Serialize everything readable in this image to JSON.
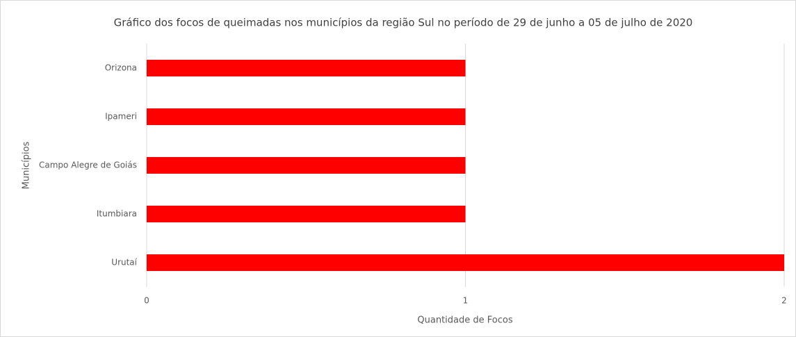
{
  "chart_data": {
    "type": "bar",
    "orientation": "horizontal",
    "title": "Gráfico dos focos de queimadas nos municípios da região Sul no período de 29 de junho a 05 de julho de 2020",
    "x_label": "Quantidade de Focos",
    "y_label": "Municípios",
    "categories": [
      "Orizona",
      "Ipameri",
      "Campo Alegre de Goiás",
      "Itumbiara",
      "Urutaí"
    ],
    "values": [
      1,
      1,
      1,
      1,
      2
    ],
    "color": "#ff0000",
    "xlim": [
      0,
      2
    ],
    "xticks": [
      0,
      1,
      2
    ],
    "grid": true
  }
}
